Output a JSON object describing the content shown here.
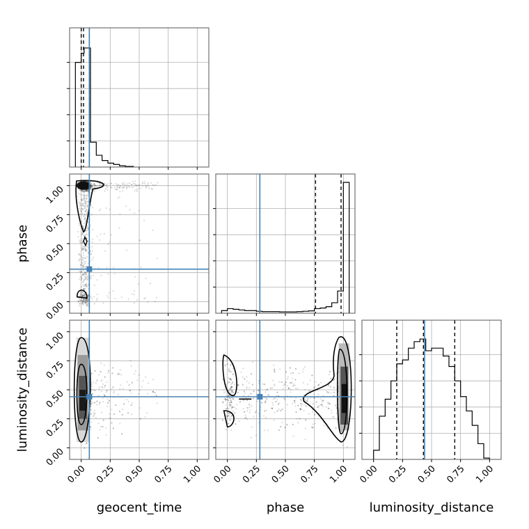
{
  "chart_data": {
    "type": "corner",
    "parameters": [
      "geocent_time",
      "phase",
      "luminosity_distance"
    ],
    "axis_labels": {
      "x": [
        "geocent_time",
        "phase",
        "luminosity_distance"
      ],
      "y_rows": [
        "",
        "phase",
        "luminosity_distance"
      ]
    },
    "range": [
      -0.1,
      1.1
    ],
    "tick_values": [
      0.0,
      0.25,
      0.5,
      0.75,
      1.0
    ],
    "tick_labels": [
      "0.00",
      "0.25",
      "0.50",
      "0.75",
      "1.00"
    ],
    "grid": true,
    "colors": {
      "truth": "#4682b4",
      "hist": "#000000",
      "points": "#000000"
    },
    "truths": {
      "geocent_time": 0.07,
      "phase": 0.28,
      "luminosity_distance": 0.44
    },
    "quantiles": {
      "geocent_time": [
        0.0,
        0.02,
        0.07
      ],
      "phase": [
        0.76,
        0.98
      ],
      "luminosity_distance": [
        0.2,
        0.43,
        0.7
      ]
    },
    "marginals": {
      "geocent_time": {
        "edges": [
          -0.05,
          0.0,
          0.025,
          0.05,
          0.08,
          0.13,
          0.18,
          0.23,
          0.28,
          0.33,
          0.38,
          0.45
        ],
        "counts": [
          0.8,
          0.87,
          0.91,
          0.91,
          0.19,
          0.09,
          0.05,
          0.03,
          0.02,
          0.01,
          0.005
        ]
      },
      "phase": {
        "edges": [
          -0.05,
          0.0,
          0.05,
          0.1,
          0.15,
          0.2,
          0.25,
          0.3,
          0.35,
          0.4,
          0.45,
          0.5,
          0.55,
          0.6,
          0.65,
          0.7,
          0.75,
          0.8,
          0.85,
          0.9,
          0.95,
          1.0,
          1.05
        ],
        "counts": [
          0.02,
          0.035,
          0.03,
          0.025,
          0.02,
          0.02,
          0.015,
          0.012,
          0.012,
          0.012,
          0.01,
          0.01,
          0.01,
          0.012,
          0.015,
          0.018,
          0.035,
          0.04,
          0.05,
          0.08,
          0.17,
          1.0
        ]
      },
      "luminosity_distance": {
        "edges": [
          0.0,
          0.05,
          0.1,
          0.15,
          0.2,
          0.25,
          0.3,
          0.35,
          0.4,
          0.45,
          0.5,
          0.55,
          0.6,
          0.65,
          0.7,
          0.75,
          0.8,
          0.85,
          0.9,
          0.95,
          1.0
        ],
        "counts": [
          0.07,
          0.33,
          0.46,
          0.6,
          0.73,
          0.76,
          0.85,
          0.9,
          0.92,
          0.83,
          0.85,
          0.85,
          0.79,
          0.71,
          0.6,
          0.48,
          0.37,
          0.26,
          0.12,
          0.01
        ]
      }
    }
  }
}
